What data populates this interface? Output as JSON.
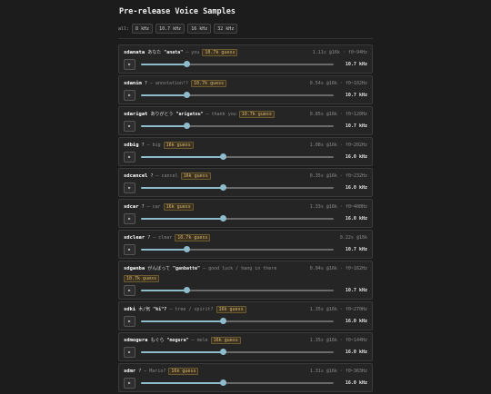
{
  "header": {
    "title": "Pre-release Voice Samples"
  },
  "filter": {
    "label": "all:",
    "options": [
      "8 kHz",
      "10.7 kHz",
      "16 kHz",
      "32 kHz"
    ]
  },
  "cards": [
    {
      "name": "sdanata",
      "jp": "あなた",
      "romaji": "\"anata\"",
      "gloss": "— you",
      "badge": "10.7k guess",
      "meta": "1.11s @16k · f0~94Hz",
      "rate": "10.7 kHz"
    },
    {
      "name": "sdanim",
      "jp": "?",
      "romaji": "",
      "gloss": "— annotation!?",
      "badge": "10.7k guess",
      "meta": "0.54s @16k · f0~102Hz",
      "rate": "10.7 kHz"
    },
    {
      "name": "sdarigat",
      "jp": "ありがとう",
      "romaji": "\"arigatou\"",
      "gloss": "— thank you",
      "badge": "10.7k guess",
      "meta": "0.85s @16k · f0~120Hz",
      "rate": "10.7 kHz"
    },
    {
      "name": "sdbig",
      "jp": "?",
      "romaji": "",
      "gloss": "— big",
      "badge": "16k guess",
      "meta": "1.08s @16k · f0~202Hz",
      "rate": "16.0 kHz"
    },
    {
      "name": "sdcancel",
      "jp": "?",
      "romaji": "",
      "gloss": "— cancel",
      "badge": "16k guess",
      "meta": "0.35s @16k · f0~232Hz",
      "rate": "16.0 kHz"
    },
    {
      "name": "sdcar",
      "jp": "?",
      "romaji": "",
      "gloss": "— car",
      "badge": "16k guess",
      "meta": "1.33s @16k · f0~408Hz",
      "rate": "16.0 kHz"
    },
    {
      "name": "sdclear",
      "jp": "?",
      "romaji": "",
      "gloss": "— clear",
      "badge": "10.7k guess",
      "meta": "0.22s @16k",
      "rate": "10.7 kHz"
    },
    {
      "name": "sdganba",
      "jp": "がんばって",
      "romaji": "\"ganbatte\"",
      "gloss": "— good luck / hang in there",
      "badge": "10.7k guess",
      "meta": "0.94s @16k · f0~162Hz",
      "rate": "10.7 kHz"
    },
    {
      "name": "sdki",
      "jp": "木/気",
      "romaji": "\"ki\"?",
      "gloss": "— tree / spirit?",
      "badge": "16k guess",
      "meta": "1.35s @16k · f0~270Hz",
      "rate": "16.0 kHz"
    },
    {
      "name": "sdmogura",
      "jp": "もぐら",
      "romaji": "\"mogura\"",
      "gloss": "— mole",
      "badge": "16k guess",
      "meta": "1.35s @16k · f0~144Hz",
      "rate": "16.0 kHz"
    },
    {
      "name": "sdmr",
      "jp": "?",
      "romaji": "",
      "gloss": "— Mario?",
      "badge": "16k guess",
      "meta": "1.31s @16k · f0~363Hz",
      "rate": "16.0 kHz"
    }
  ]
}
